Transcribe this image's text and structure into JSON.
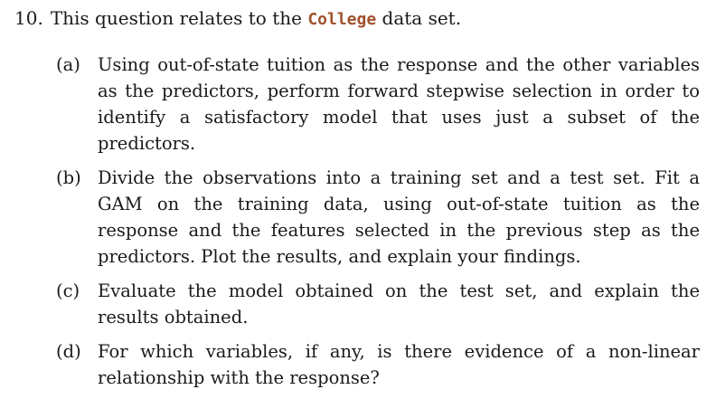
{
  "question": {
    "number": "10.",
    "intro_before": "This question relates to the ",
    "dataset": "College",
    "intro_after": " data set."
  },
  "parts": [
    {
      "label": "(a)",
      "text": "Using out-of-state tuition as the response and the other variables as the predictors, perform forward stepwise selection in order to identify a satisfactory model that uses just a subset of the predictors."
    },
    {
      "label": "(b)",
      "text": "Divide the observations into a training set and a test set. Fit a GAM on the training data, using out-of-state tuition as the response and the features selected in the previous step as the predictors. Plot the results, and explain your findings."
    },
    {
      "label": "(c)",
      "text": "Evaluate the model obtained on the test set, and explain the results obtained."
    },
    {
      "label": "(d)",
      "text": "For which variables, if any, is there evidence of a non-linear relationship with the response?"
    }
  ],
  "colors": {
    "text": "#1a1a1a",
    "dataset_code": "#a0522d"
  }
}
